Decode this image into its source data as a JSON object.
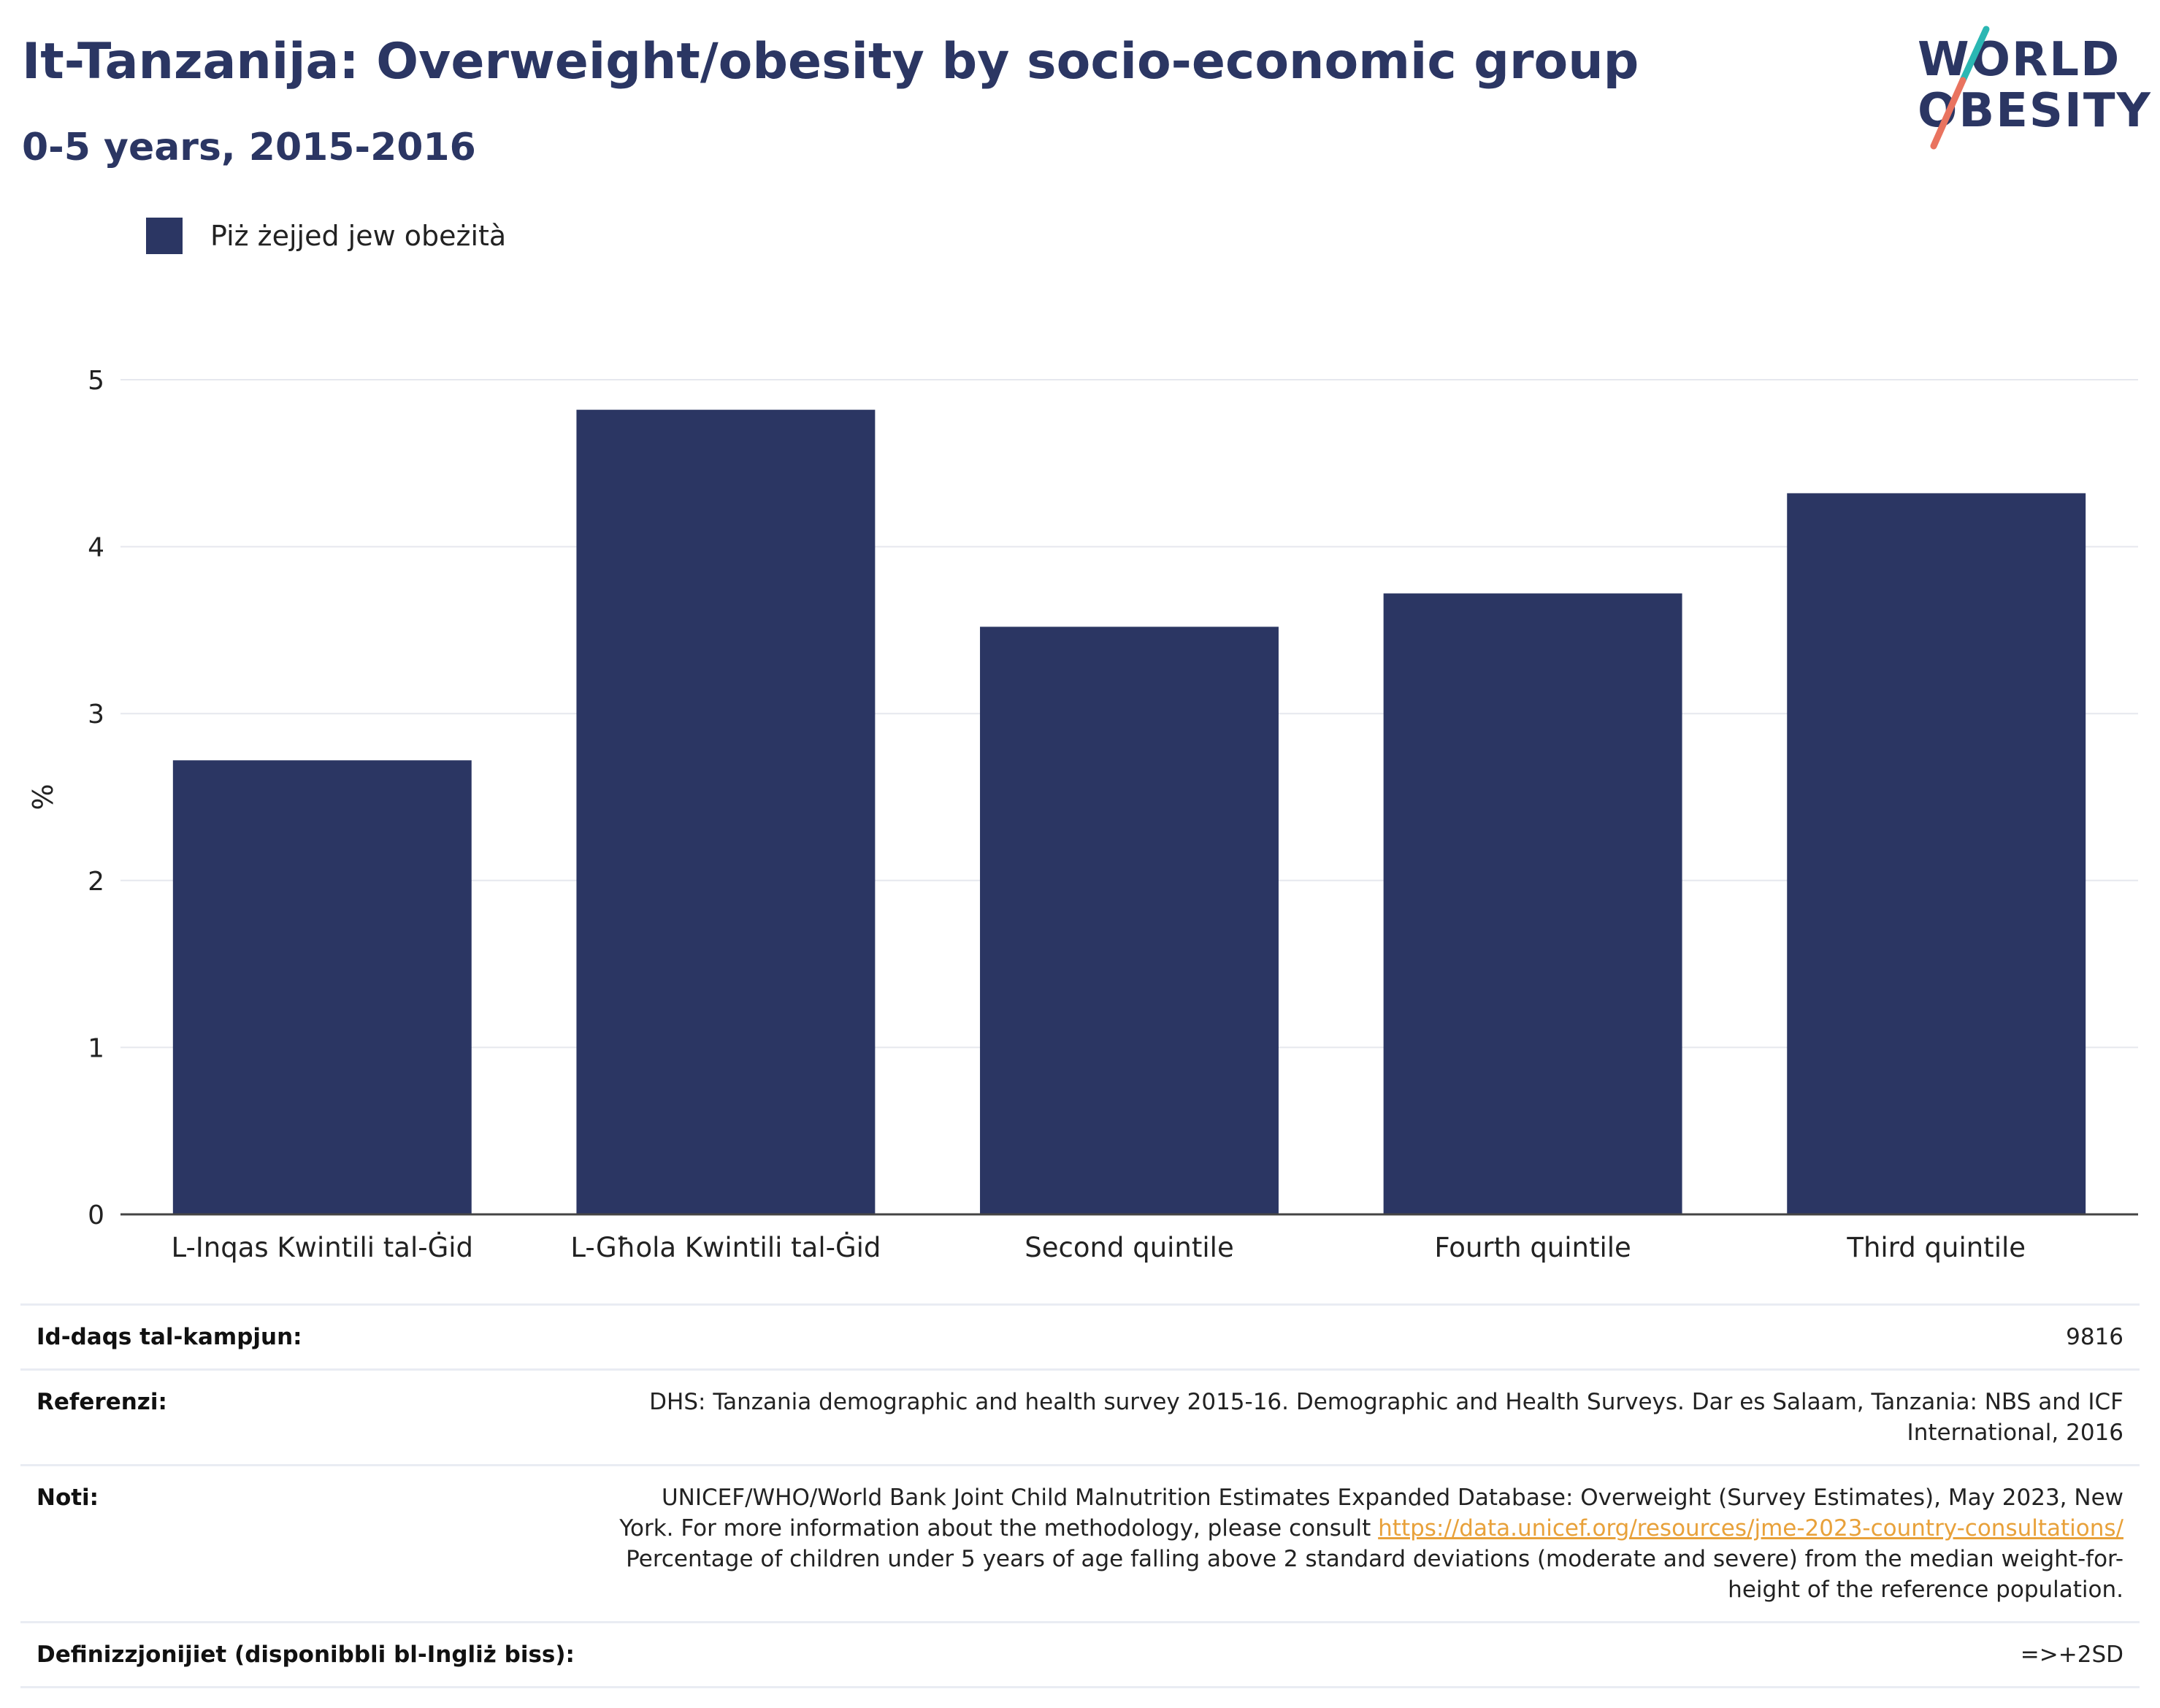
{
  "title": "It-Tanzanija: Overweight/obesity by socio-economic group",
  "subtitle": "0-5 years, 2015-2016",
  "logo": {
    "line1": "WORLD",
    "line2": "OBESITY",
    "accent_teal": "#2bb7b3",
    "accent_coral": "#e9735f"
  },
  "legend": {
    "label": "Piż żejjed jew obeżità",
    "color": "#2b3663"
  },
  "chart_data": {
    "type": "bar",
    "categories": [
      "L-Inqas Kwintili tal-Ġid",
      "L-Għola Kwintili tal-Ġid",
      "Second quintile",
      "Fourth quintile",
      "Third quintile"
    ],
    "series": [
      {
        "name": "Piż żejjed jew obeżità",
        "values": [
          2.72,
          4.82,
          3.52,
          3.72,
          4.32
        ],
        "color": "#2b3663"
      }
    ],
    "ylabel": "%",
    "ylim": [
      0,
      5
    ],
    "yticks": [
      0,
      1,
      2,
      3,
      4,
      5
    ],
    "grid": true,
    "legend_position": "top-left"
  },
  "info": {
    "sample_size": {
      "label": "Id-daqs tal-kampjun:",
      "value": "9816"
    },
    "references": {
      "label": "Referenzi:",
      "value": "DHS: Tanzania demographic and health survey 2015-16. Demographic and Health Surveys. Dar es Salaam, Tanzania: NBS and ICF International, 2016"
    },
    "notes": {
      "label": "Noti:",
      "text_before": "UNICEF/WHO/World Bank Joint Child Malnutrition Estimates Expanded Database: Overweight (Survey Estimates), May 2023, New York. For more information about the methodology, please consult ",
      "link": "https://data.unicef.org/resources/jme-2023-country-consultations/",
      "text_after": " Percentage of children under 5 years of age falling above 2 standard deviations (moderate and severe) from the median weight-for-height of the reference population."
    },
    "definitions": {
      "label": "Definizzjonijiet (disponibbli bl-Ingliż biss):",
      "value": "=>+2SD"
    }
  }
}
